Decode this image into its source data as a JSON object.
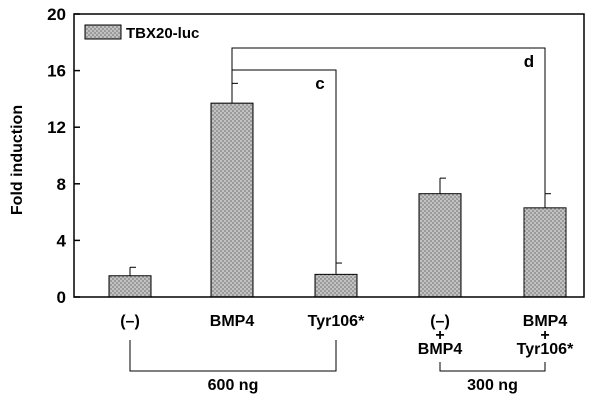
{
  "chart_data": {
    "type": "bar",
    "title": "",
    "xlabel": "",
    "ylabel": "Fold induction",
    "ylim": [
      0,
      20
    ],
    "yticks": [
      0,
      4,
      8,
      12,
      16,
      20
    ],
    "grid": false,
    "legend": {
      "placement": "top-left"
    },
    "categories": [
      "(–)",
      "BMP4",
      "Tyr106*",
      "(–)\n+\nBMP4",
      "BMP4\n+\nTyr106*"
    ],
    "category_lines": [
      [
        "(–)"
      ],
      [
        "BMP4"
      ],
      [
        "Tyr106*"
      ],
      [
        "(–)",
        "+",
        "BMP4"
      ],
      [
        "BMP4",
        "+",
        "Tyr106*"
      ]
    ],
    "series": [
      {
        "name": "TBX20-luc",
        "values": [
          1.5,
          13.7,
          1.6,
          7.3,
          6.3
        ],
        "errors": [
          0.6,
          1.4,
          0.8,
          1.1,
          1.0
        ]
      }
    ],
    "comparisons": [
      {
        "label": "c",
        "from_index": 1,
        "to_index": 2
      },
      {
        "label": "d",
        "from_index": 1,
        "to_index": 4
      }
    ],
    "groups": [
      {
        "label": "600 ng",
        "from_index": 0,
        "to_index": 2
      },
      {
        "label": "300 ng",
        "from_index": 3,
        "to_index": 4
      }
    ],
    "colors": {
      "bar_fill": "#9a9a9a",
      "bar_dots": "#ffffff",
      "stroke": "#000000"
    }
  }
}
